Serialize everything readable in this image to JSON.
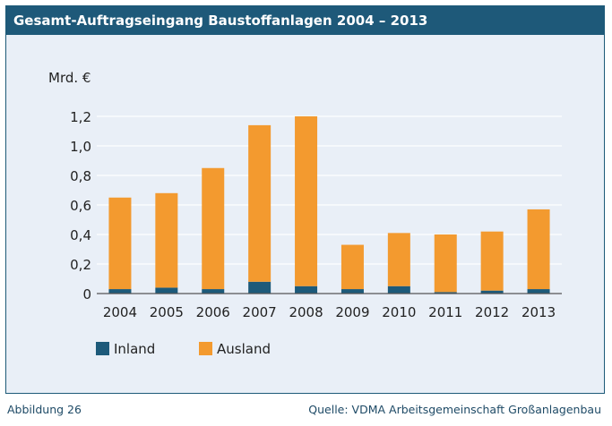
{
  "header": {
    "title": "Gesamt-Auftragseingang Baustoffanlagen 2004 – 2013"
  },
  "footer": {
    "figure_label": "Abbildung 26",
    "source": "Quelle: VDMA Arbeitsgemeinschaft Großanlagenbau"
  },
  "colors": {
    "inland": "#1d5a7a",
    "ausland": "#f39a2f",
    "title_bg": "#1e5979",
    "plot_bg": "#e9eff7"
  },
  "chart_data": {
    "type": "bar",
    "stacked": true,
    "title": "Gesamt-Auftragseingang Baustoffanlagen 2004 – 2013",
    "ylabel": "Mrd. €",
    "xlabel": "",
    "ylim": [
      0,
      1.2
    ],
    "yticks": [
      0,
      0.2,
      0.4,
      0.6,
      0.8,
      1.0,
      1.2
    ],
    "ytick_labels": [
      "0",
      "0,2",
      "0,4",
      "0,6",
      "0,8",
      "1,0",
      "1,2"
    ],
    "categories": [
      "2004",
      "2005",
      "2006",
      "2007",
      "2008",
      "2009",
      "2010",
      "2011",
      "2012",
      "2013"
    ],
    "series": [
      {
        "name": "Inland",
        "values": [
          0.03,
          0.04,
          0.03,
          0.08,
          0.05,
          0.03,
          0.05,
          0.01,
          0.02,
          0.03
        ]
      },
      {
        "name": "Ausland",
        "values": [
          0.62,
          0.64,
          0.82,
          1.06,
          1.15,
          0.3,
          0.36,
          0.39,
          0.4,
          0.54
        ]
      }
    ],
    "grid": true,
    "legend": "bottom-left"
  }
}
